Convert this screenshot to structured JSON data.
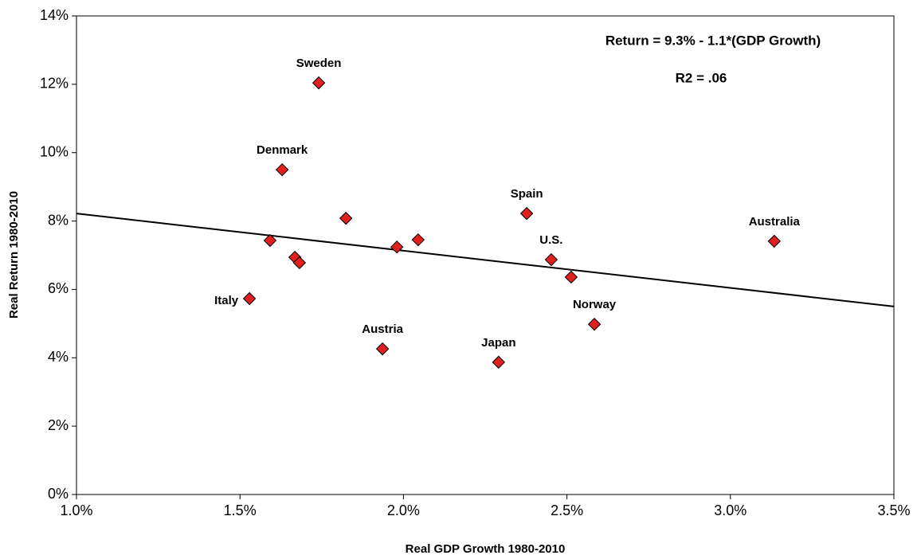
{
  "chart_data": {
    "type": "scatter",
    "x_label": "Real GDP Growth 1980-2010",
    "y_label": "Real Return 1980-2010",
    "annotations": [
      "Return = 9.3% - 1.1*(GDP Growth)",
      "R2 = .06"
    ],
    "annotation_color": "#e8262c",
    "series": [
      {
        "color": "#e02020",
        "x": [
          1.741,
          1.629,
          1.824,
          1.592,
          1.668,
          1.682,
          1.98,
          2.045,
          2.377,
          2.452,
          2.513,
          2.584,
          3.134,
          1.529,
          1.936,
          2.291
        ],
        "values": [
          12.04,
          9.5,
          8.08,
          7.43,
          6.94,
          6.78,
          7.24,
          7.45,
          8.22,
          6.87,
          6.36,
          4.98,
          7.41,
          5.73,
          4.26,
          3.87
        ],
        "point_labels": [
          "Sweden",
          "Denmark",
          null,
          null,
          null,
          null,
          null,
          null,
          "Spain",
          "U.S.",
          null,
          "Norway",
          "Australia",
          "Italy",
          "Austria",
          "Japan"
        ]
      }
    ],
    "trendline": {
      "color": "#000000",
      "x": [
        1.0,
        3.5
      ],
      "values": [
        8.22,
        5.5
      ]
    },
    "xlim": [
      1.0,
      3.5
    ],
    "xticks": [
      {
        "value": 1.0,
        "label": "1.0%"
      },
      {
        "value": 1.5,
        "label": "1.5%"
      },
      {
        "value": 2.0,
        "label": "2.0%"
      },
      {
        "value": 2.5,
        "label": "2.5%"
      },
      {
        "value": 3.0,
        "label": "3.0%"
      },
      {
        "value": 3.5,
        "label": "3.5%"
      }
    ],
    "ylim": [
      0,
      14
    ],
    "yticks": [
      {
        "value": 0,
        "label": "0%"
      },
      {
        "value": 2,
        "label": "2%"
      },
      {
        "value": 4,
        "label": "4%"
      },
      {
        "value": 6,
        "label": "6%"
      },
      {
        "value": 8,
        "label": "8%"
      },
      {
        "value": 10,
        "label": "10%"
      },
      {
        "value": 12,
        "label": "12%"
      },
      {
        "value": 14,
        "label": "14%"
      }
    ],
    "grid": false
  }
}
